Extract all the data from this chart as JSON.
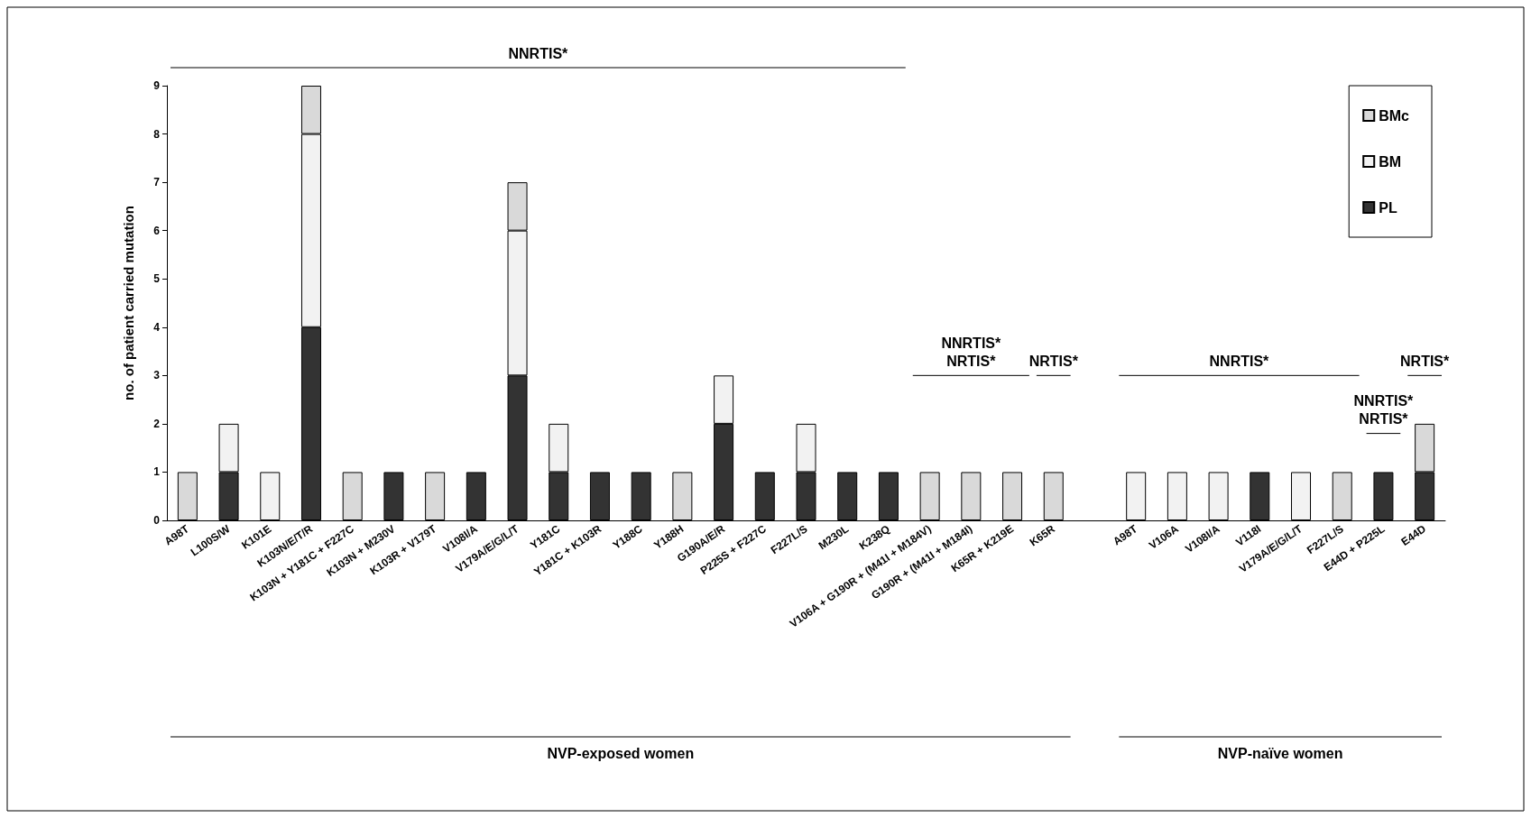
{
  "chart_data": {
    "type": "bar",
    "stacked": true,
    "ylabel": "no. of patient carried mutation",
    "categories": [
      "A98T",
      "L100S/W",
      "K101E",
      "K103N/E/T/R",
      "K103N + Y181C + F227C",
      "K103N + M230V",
      "K103R + V179T",
      "V108I/A",
      "V179A/E/G/L/T",
      "Y181C",
      "Y181C + K103R",
      "Y188C",
      "Y188H",
      "G190A/E/R",
      "P225S + F227C",
      "F227L/S",
      "M230L",
      "K238Q",
      "V106A + G190R + (M41I + M184V)",
      "G190R + (M41I + M184I)",
      "K65R + K219E",
      "K65R",
      null,
      "A98T",
      "V106A",
      "V108I/A",
      "V118I",
      "V179A/E/G/L/T",
      "F227L/S",
      "E44D + P225L",
      "E44D"
    ],
    "series": [
      {
        "name": "PL",
        "color": "#333333",
        "values": [
          0,
          1,
          0,
          4,
          0,
          1,
          0,
          1,
          3,
          1,
          1,
          1,
          0,
          2,
          1,
          1,
          1,
          1,
          0,
          0,
          0,
          0,
          null,
          0,
          0,
          0,
          1,
          0,
          0,
          1,
          1
        ]
      },
      {
        "name": "BM",
        "color": "#f2f2f2",
        "values": [
          0,
          1,
          1,
          4,
          0,
          0,
          0,
          0,
          3,
          1,
          0,
          0,
          0,
          1,
          0,
          1,
          0,
          0,
          0,
          0,
          0,
          0,
          null,
          1,
          1,
          1,
          0,
          1,
          0,
          0,
          0
        ]
      },
      {
        "name": "BMc",
        "color": "#d9d9d9",
        "values": [
          1,
          0,
          0,
          1,
          1,
          0,
          1,
          0,
          1,
          0,
          0,
          0,
          1,
          0,
          0,
          0,
          0,
          0,
          1,
          1,
          1,
          1,
          null,
          0,
          0,
          0,
          0,
          0,
          1,
          0,
          1
        ]
      }
    ],
    "ylim": [
      0,
      9
    ],
    "yticks": [
      0,
      1,
      2,
      3,
      4,
      5,
      6,
      7,
      8,
      9
    ],
    "grid": false,
    "legend": "top right",
    "annotations": [
      "NNRTIS*",
      "NNRTIS*\nNRTIS*",
      "NRTIS*",
      "NNRTIS*",
      "NNRTIS*\nNRTIS*",
      "NRTIS*",
      "NVP-exposed women",
      "NVP-naïve women"
    ]
  }
}
